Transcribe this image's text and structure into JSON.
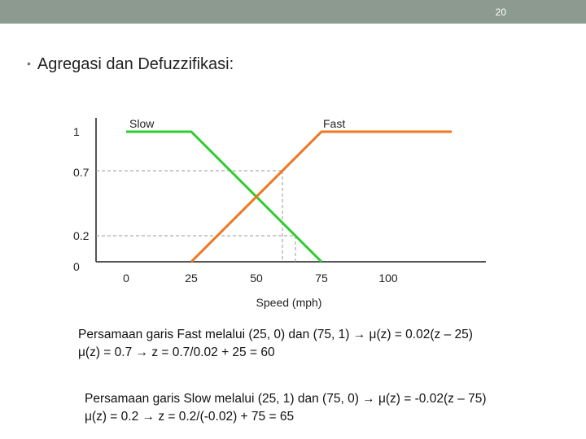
{
  "slide": {
    "number": "20"
  },
  "heading": {
    "bullet": "•",
    "text": "Agregasi dan Defuzzifikasi:"
  },
  "colors": {
    "topbar": "#8c9a90",
    "slow": "#2ecc2e",
    "fast": "#ee7722",
    "axis": "#555555",
    "guide": "#999999"
  },
  "chart_data": {
    "type": "line",
    "xlabel": "Speed (mph)",
    "ylabel": "",
    "x_ticks": [
      "0",
      "25",
      "50",
      "75",
      "100"
    ],
    "y_ticks": [
      "1",
      "0.7",
      "0.2",
      "0"
    ],
    "xlim": [
      -10,
      140
    ],
    "ylim": [
      0,
      1
    ],
    "grid": false,
    "series": [
      {
        "name": "Slow",
        "color": "#2ecc2e",
        "points": [
          [
            0,
            1
          ],
          [
            25,
            1
          ],
          [
            75,
            0
          ]
        ]
      },
      {
        "name": "Fast",
        "color": "#ee7722",
        "points": [
          [
            25,
            0
          ],
          [
            75,
            1
          ],
          [
            125,
            1
          ]
        ]
      }
    ],
    "guides": [
      {
        "y": 0.7,
        "x": 60
      },
      {
        "y": 0.2,
        "x": 65
      }
    ]
  },
  "equations": {
    "fast_line1": "Persamaan garis Fast melalui (25, 0) dan (75, 1) → μ(z) = 0.02(z – 25)",
    "fast_line2": "μ(z) = 0.7 → z = 0.7/0.02 + 25 = 60",
    "slow_line1": "Persamaan garis Slow melalui (25, 1) dan (75, 0) → μ(z) = -0.02(z – 75)",
    "slow_line2": "μ(z) = 0.2 → z = 0.2/(-0.02) + 75 = 65"
  }
}
